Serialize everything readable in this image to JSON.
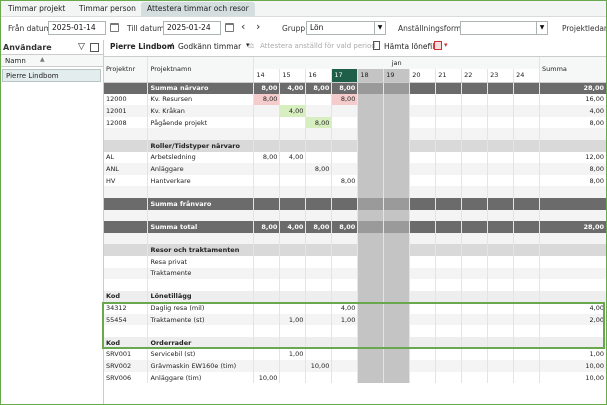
{
  "tabs": [
    "Timmar projekt",
    "Timmar person",
    "Attestera timmar och resor"
  ],
  "filters": {
    "from_label": "Från datum:",
    "from_value": "2025-01-14",
    "to_label": "Till datum:",
    "to_value": "2025-01-24",
    "group_label": "Grupp:",
    "group_value": "Lön",
    "employment_label": "Anställningsform:",
    "employment_value": "",
    "project_manager_label": "Projektledare"
  },
  "left": {
    "title": "Användare",
    "column": "Namn",
    "users": [
      "Pierre Lindbom"
    ]
  },
  "toolbar": {
    "user": "Pierre Lindbom",
    "approve": "Godkänn timmar",
    "attest": "Attestera anställd för vald period",
    "payslip": "Hämta lönefil"
  },
  "grid": {
    "month": "jan",
    "headers": {
      "projektnr": "Projektnr",
      "projektnamn": "Projektnamn",
      "summa": "Summa"
    },
    "days": [
      "14",
      "15",
      "16",
      "17",
      "18",
      "19",
      "20",
      "21",
      "22",
      "23",
      "24"
    ],
    "rows": [
      {
        "t": "sec",
        "a": "",
        "b": "Summa närvaro",
        "d": [
          "8,00",
          "4,00",
          "8,00",
          "8,00",
          "",
          "",
          "",
          "",
          "",
          "",
          ""
        ],
        "s": "28,00"
      },
      {
        "t": "row",
        "a": "12000",
        "b": "Kv. Resursen",
        "d": [
          "8,00",
          "",
          "",
          "8,00",
          "",
          "",
          "",
          "",
          "",
          "",
          ""
        ],
        "s": "16,00",
        "pink": [
          0,
          3
        ]
      },
      {
        "t": "alt",
        "a": "12001",
        "b": "Kv. Kråkan",
        "d": [
          "",
          "4,00",
          "",
          "",
          "",
          "",
          "",
          "",
          "",
          "",
          ""
        ],
        "s": "4,00",
        "green": [
          1
        ]
      },
      {
        "t": "row",
        "a": "12008",
        "b": "Pågående projekt",
        "d": [
          "",
          "",
          "8,00",
          "",
          "",
          "",
          "",
          "",
          "",
          "",
          ""
        ],
        "s": "8,00",
        "green": [
          2
        ]
      },
      {
        "t": "alt",
        "a": "",
        "b": "",
        "d": [
          "",
          "",
          "",
          "",
          "",
          "",
          "",
          "",
          "",
          "",
          ""
        ],
        "s": ""
      },
      {
        "t": "sub",
        "a": "",
        "b": "Roller/Tidstyper närvaro",
        "d": [
          "",
          "",
          "",
          "",
          "",
          "",
          "",
          "",
          "",
          "",
          ""
        ],
        "s": ""
      },
      {
        "t": "row",
        "a": "AL",
        "b": "Arbetsledning",
        "d": [
          "8,00",
          "4,00",
          "",
          "",
          "",
          "",
          "",
          "",
          "",
          "",
          ""
        ],
        "s": "12,00"
      },
      {
        "t": "alt",
        "a": "ANL",
        "b": "Anläggare",
        "d": [
          "",
          "",
          "8,00",
          "",
          "",
          "",
          "",
          "",
          "",
          "",
          ""
        ],
        "s": "8,00"
      },
      {
        "t": "row",
        "a": "HV",
        "b": "Hantverkare",
        "d": [
          "",
          "",
          "",
          "8,00",
          "",
          "",
          "",
          "",
          "",
          "",
          ""
        ],
        "s": "8,00"
      },
      {
        "t": "alt",
        "a": "",
        "b": "",
        "d": [
          "",
          "",
          "",
          "",
          "",
          "",
          "",
          "",
          "",
          "",
          ""
        ],
        "s": ""
      },
      {
        "t": "sec",
        "a": "",
        "b": "Summa frånvaro",
        "d": [
          "",
          "",
          "",
          "",
          "",
          "",
          "",
          "",
          "",
          "",
          ""
        ],
        "s": ""
      },
      {
        "t": "alt",
        "a": "",
        "b": "",
        "d": [
          "",
          "",
          "",
          "",
          "",
          "",
          "",
          "",
          "",
          "",
          ""
        ],
        "s": ""
      },
      {
        "t": "sec",
        "a": "",
        "b": "Summa total",
        "d": [
          "8,00",
          "4,00",
          "8,00",
          "8,00",
          "",
          "",
          "",
          "",
          "",
          "",
          ""
        ],
        "s": "28,00"
      },
      {
        "t": "alt",
        "a": "",
        "b": "",
        "d": [
          "",
          "",
          "",
          "",
          "",
          "",
          "",
          "",
          "",
          "",
          ""
        ],
        "s": ""
      },
      {
        "t": "sub",
        "a": "",
        "b": "Resor och traktamenten",
        "d": [
          "",
          "",
          "",
          "",
          "",
          "",
          "",
          "",
          "",
          "",
          ""
        ],
        "s": ""
      },
      {
        "t": "row",
        "a": "",
        "b": "Resa privat",
        "d": [
          "",
          "",
          "",
          "",
          "",
          "",
          "",
          "",
          "",
          "",
          ""
        ],
        "s": ""
      },
      {
        "t": "alt",
        "a": "",
        "b": "Traktamente",
        "d": [
          "",
          "",
          "",
          "",
          "",
          "",
          "",
          "",
          "",
          "",
          ""
        ],
        "s": ""
      },
      {
        "t": "row",
        "a": "",
        "b": "",
        "d": [
          "",
          "",
          "",
          "",
          "",
          "",
          "",
          "",
          "",
          "",
          ""
        ],
        "s": ""
      },
      {
        "t": "kod",
        "a": "Kod",
        "b": "Lönetillägg",
        "d": [
          "",
          "",
          "",
          "",
          "",
          "",
          "",
          "",
          "",
          "",
          ""
        ],
        "s": ""
      },
      {
        "t": "row",
        "a": "34312",
        "b": "Daglig resa (mil)",
        "d": [
          "",
          "",
          "",
          "4,00",
          "",
          "",
          "",
          "",
          "",
          "",
          ""
        ],
        "s": "4,00"
      },
      {
        "t": "alt",
        "a": "55454",
        "b": "Traktamente (st)",
        "d": [
          "",
          "1,00",
          "",
          "1,00",
          "",
          "",
          "",
          "",
          "",
          "",
          ""
        ],
        "s": "2,00"
      },
      {
        "t": "row",
        "a": "",
        "b": "",
        "d": [
          "",
          "",
          "",
          "",
          "",
          "",
          "",
          "",
          "",
          "",
          ""
        ],
        "s": ""
      },
      {
        "t": "kod",
        "a": "Kod",
        "b": "Orderrader",
        "d": [
          "",
          "",
          "",
          "",
          "",
          "",
          "",
          "",
          "",
          "",
          ""
        ],
        "s": ""
      },
      {
        "t": "row",
        "a": "SRV001",
        "b": "Servicebil (st)",
        "d": [
          "",
          "1,00",
          "",
          "",
          "",
          "",
          "",
          "",
          "",
          "",
          ""
        ],
        "s": "1,00"
      },
      {
        "t": "alt",
        "a": "SRV002",
        "b": "Grävmaskin EW160e (tim)",
        "d": [
          "",
          "",
          "10,00",
          "",
          "",
          "",
          "",
          "",
          "",
          "",
          ""
        ],
        "s": "10,00"
      },
      {
        "t": "row",
        "a": "SRV006",
        "b": "Anläggare (tim)",
        "d": [
          "10,00",
          "",
          "",
          "",
          "",
          "",
          "",
          "",
          "",
          "",
          ""
        ],
        "s": "10,00"
      }
    ]
  }
}
